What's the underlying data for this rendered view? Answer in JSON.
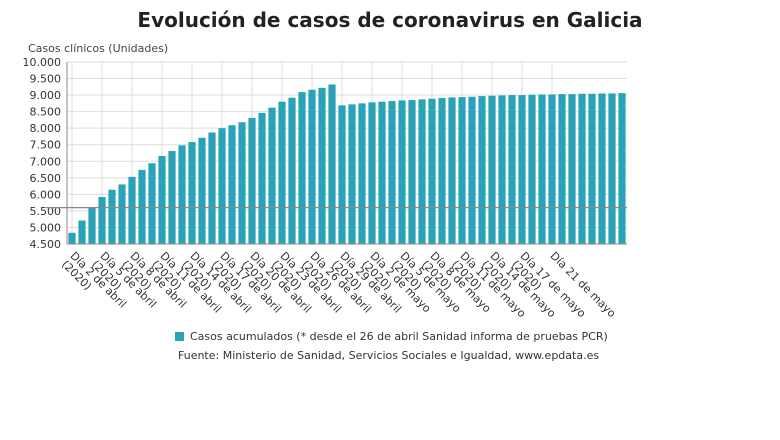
{
  "title": "Evolución de casos de coronavirus en Galicia",
  "source": "Fuente: Ministerio de Sanidad, Servicios Sociales e Igualdad, www.epdata.es",
  "colors": {
    "bar": "#2aa3b8",
    "grid": "#dddddd",
    "axis": "#888888"
  },
  "chart_data": {
    "type": "bar",
    "ylabel": "Casos clínicos (Unidades)",
    "ylim": [
      4500,
      10000
    ],
    "yticks": [
      "4.500",
      "5.000",
      "5.500",
      "6.000",
      "6.500",
      "7.000",
      "7.500",
      "8.000",
      "8.500",
      "9.000",
      "9.500",
      "10.000"
    ],
    "ytick_values": [
      4500,
      5000,
      5500,
      6000,
      6500,
      7000,
      7500,
      8000,
      8500,
      9000,
      9500,
      10000
    ],
    "baseline_value": 5600,
    "grid": true,
    "legend_position": "bottom",
    "series": [
      {
        "name": "Casos acumulados (* desde el 26 de abril Sanidad informa de pruebas PCR)",
        "values": [
          4840,
          5210,
          5600,
          5920,
          6140,
          6300,
          6530,
          6740,
          6940,
          7160,
          7310,
          7480,
          7580,
          7710,
          7870,
          8000,
          8090,
          8180,
          8310,
          8460,
          8620,
          8800,
          8920,
          9090,
          9160,
          9220,
          9320,
          8690,
          8720,
          8750,
          8780,
          8800,
          8820,
          8840,
          8850,
          8870,
          8890,
          8910,
          8930,
          8940,
          8950,
          8970,
          8980,
          8990,
          9000,
          9000,
          9010,
          9020,
          9020,
          9030,
          9030,
          9040,
          9040,
          9050,
          9050,
          9060
        ]
      }
    ],
    "xtick_labels": [
      {
        "index": 0,
        "lines": [
          "Día 2 de abril",
          "(2020)"
        ]
      },
      {
        "index": 3,
        "lines": [
          "Día 5 de abril",
          "(2020)"
        ]
      },
      {
        "index": 6,
        "lines": [
          "Día 8 de abril",
          "(2020)"
        ]
      },
      {
        "index": 9,
        "lines": [
          "Día 11 de abril",
          "(2020)"
        ]
      },
      {
        "index": 12,
        "lines": [
          "Día 14 de abril",
          "(2020)"
        ]
      },
      {
        "index": 15,
        "lines": [
          "Día 17 de abril",
          "(2020)"
        ]
      },
      {
        "index": 18,
        "lines": [
          "Día 20 de abril",
          "(2020)"
        ]
      },
      {
        "index": 21,
        "lines": [
          "Día 23 de abril",
          "(2020)"
        ]
      },
      {
        "index": 24,
        "lines": [
          "Día 26 de abril",
          "(2020)"
        ]
      },
      {
        "index": 27,
        "lines": [
          "Día 29 de abril",
          "(2020)"
        ]
      },
      {
        "index": 30,
        "lines": [
          "Día 2 de mayo",
          "(2020)"
        ]
      },
      {
        "index": 33,
        "lines": [
          "Día 5 de mayo",
          "(2020)"
        ]
      },
      {
        "index": 36,
        "lines": [
          "Día 8 de mayo",
          "(2020)"
        ]
      },
      {
        "index": 39,
        "lines": [
          "Día 11 de mayo",
          "(2020)"
        ]
      },
      {
        "index": 42,
        "lines": [
          "Día 14 de mayo",
          "(2020)"
        ]
      },
      {
        "index": 45,
        "lines": [
          "Día 17 de mayo",
          "(2020)"
        ]
      },
      {
        "index": 48,
        "lines": [
          "Día 21 de mayo"
        ]
      }
    ]
  }
}
